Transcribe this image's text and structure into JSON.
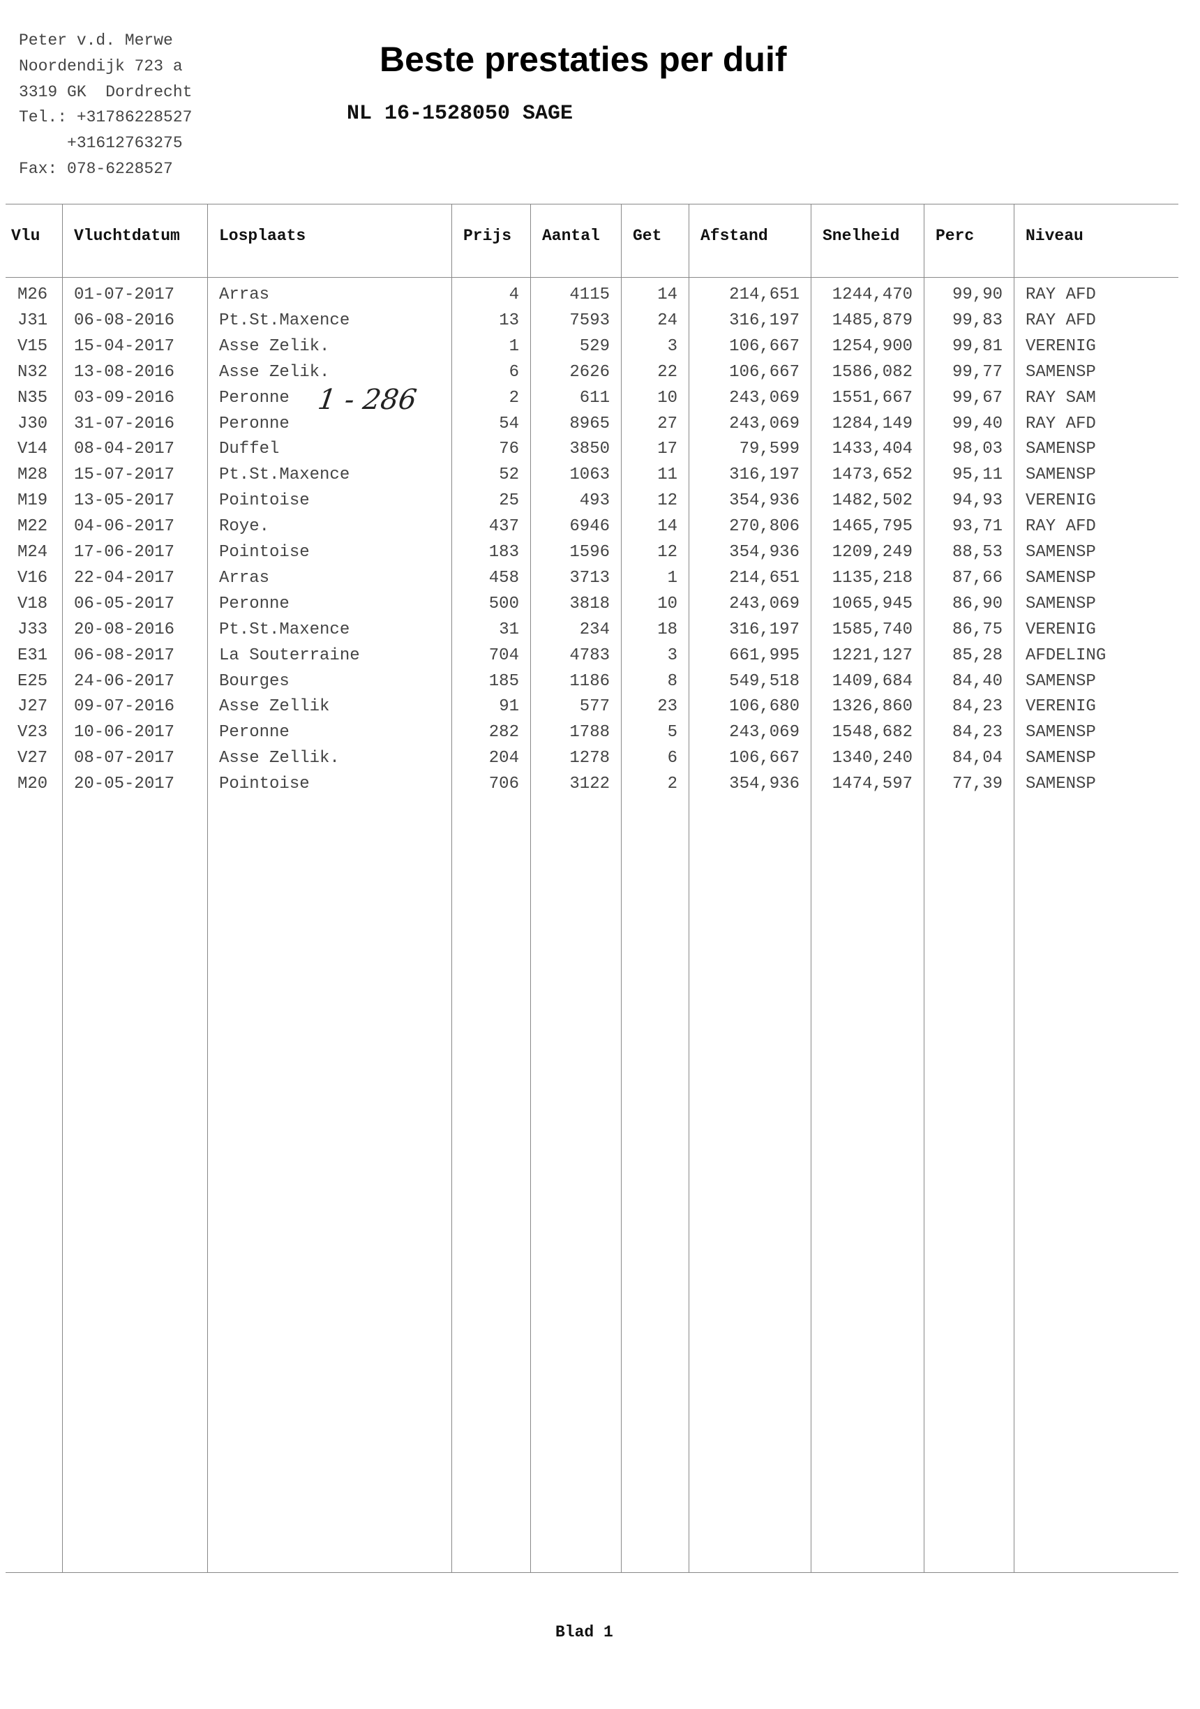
{
  "sender": {
    "lines": [
      "Peter v.d. Merwe",
      "Noordendijk 723 a",
      "3319 GK  Dordrecht",
      "Tel.: +31786228527",
      "     +31612763275",
      "Fax: 078-6228527"
    ]
  },
  "document": {
    "title": "Beste prestaties per duif",
    "pigeon": "NL 16-1528050 SAGE",
    "handwritten_note": "1 - 286",
    "footer": "Blad 1"
  },
  "table": {
    "headers": [
      "Vlu",
      "Vluchtdatum",
      "Losplaats",
      "Prijs",
      "Aantal",
      "Get",
      "Afstand",
      "Snelheid",
      "Perc",
      "Niveau"
    ],
    "rows": [
      [
        "M26",
        "01-07-2017",
        "Arras",
        "4",
        "4115",
        "14",
        "214,651",
        "1244,470",
        "99,90",
        "RAY AFD"
      ],
      [
        "J31",
        "06-08-2016",
        "Pt.St.Maxence",
        "13",
        "7593",
        "24",
        "316,197",
        "1485,879",
        "99,83",
        "RAY AFD"
      ],
      [
        "V15",
        "15-04-2017",
        "Asse Zelik.",
        "1",
        "529",
        "3",
        "106,667",
        "1254,900",
        "99,81",
        "VERENIG"
      ],
      [
        "N32",
        "13-08-2016",
        "Asse Zelik.",
        "6",
        "2626",
        "22",
        "106,667",
        "1586,082",
        "99,77",
        "SAMENSP"
      ],
      [
        "N35",
        "03-09-2016",
        "Peronne",
        "2",
        "611",
        "10",
        "243,069",
        "1551,667",
        "99,67",
        "RAY SAM"
      ],
      [
        "J30",
        "31-07-2016",
        "Peronne",
        "54",
        "8965",
        "27",
        "243,069",
        "1284,149",
        "99,40",
        "RAY AFD"
      ],
      [
        "V14",
        "08-04-2017",
        "Duffel",
        "76",
        "3850",
        "17",
        "79,599",
        "1433,404",
        "98,03",
        "SAMENSP"
      ],
      [
        "M28",
        "15-07-2017",
        "Pt.St.Maxence",
        "52",
        "1063",
        "11",
        "316,197",
        "1473,652",
        "95,11",
        "SAMENSP"
      ],
      [
        "M19",
        "13-05-2017",
        "Pointoise",
        "25",
        "493",
        "12",
        "354,936",
        "1482,502",
        "94,93",
        "VERENIG"
      ],
      [
        "M22",
        "04-06-2017",
        "Roye.",
        "437",
        "6946",
        "14",
        "270,806",
        "1465,795",
        "93,71",
        "RAY AFD"
      ],
      [
        "M24",
        "17-06-2017",
        "Pointoise",
        "183",
        "1596",
        "12",
        "354,936",
        "1209,249",
        "88,53",
        "SAMENSP"
      ],
      [
        "V16",
        "22-04-2017",
        "Arras",
        "458",
        "3713",
        "1",
        "214,651",
        "1135,218",
        "87,66",
        "SAMENSP"
      ],
      [
        "V18",
        "06-05-2017",
        "Peronne",
        "500",
        "3818",
        "10",
        "243,069",
        "1065,945",
        "86,90",
        "SAMENSP"
      ],
      [
        "J33",
        "20-08-2016",
        "Pt.St.Maxence",
        "31",
        "234",
        "18",
        "316,197",
        "1585,740",
        "86,75",
        "VERENIG"
      ],
      [
        "E31",
        "06-08-2017",
        "La Souterraine",
        "704",
        "4783",
        "3",
        "661,995",
        "1221,127",
        "85,28",
        "AFDELING"
      ],
      [
        "E25",
        "24-06-2017",
        "Bourges",
        "185",
        "1186",
        "8",
        "549,518",
        "1409,684",
        "84,40",
        "SAMENSP"
      ],
      [
        "J27",
        "09-07-2016",
        "Asse Zellik",
        "91",
        "577",
        "23",
        "106,680",
        "1326,860",
        "84,23",
        "VERENIG"
      ],
      [
        "V23",
        "10-06-2017",
        "Peronne",
        "282",
        "1788",
        "5",
        "243,069",
        "1548,682",
        "84,23",
        "SAMENSP"
      ],
      [
        "V27",
        "08-07-2017",
        "Asse Zellik.",
        "204",
        "1278",
        "6",
        "106,667",
        "1340,240",
        "84,04",
        "SAMENSP"
      ],
      [
        "M20",
        "20-05-2017",
        "Pointoise",
        "706",
        "3122",
        "2",
        "354,936",
        "1474,597",
        "77,39",
        "SAMENSP"
      ]
    ]
  }
}
